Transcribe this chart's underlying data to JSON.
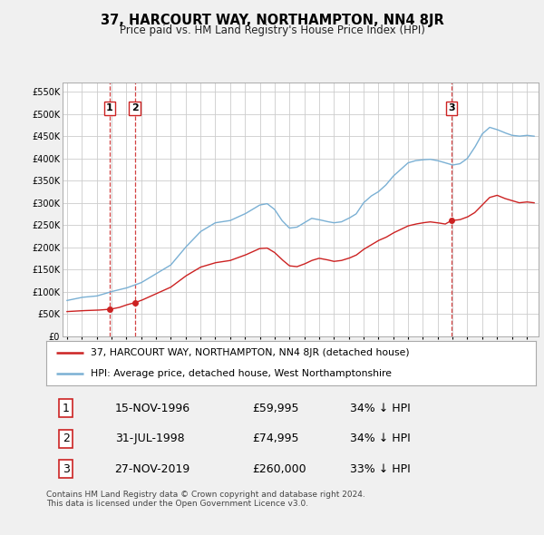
{
  "title": "37, HARCOURT WAY, NORTHAMPTON, NN4 8JR",
  "subtitle": "Price paid vs. HM Land Registry's House Price Index (HPI)",
  "ytick_values": [
    0,
    50000,
    100000,
    150000,
    200000,
    250000,
    300000,
    350000,
    400000,
    450000,
    500000,
    550000
  ],
  "ylim": [
    0,
    570000
  ],
  "xlim_start": 1993.7,
  "xlim_end": 2025.8,
  "hpi_color": "#7ab0d4",
  "price_color": "#cc2222",
  "dashed_vline_color": "#cc2222",
  "transactions": [
    {
      "date": 1996.88,
      "price": 59995,
      "label": "1"
    },
    {
      "date": 1998.58,
      "price": 74995,
      "label": "2"
    },
    {
      "date": 2019.92,
      "price": 260000,
      "label": "3"
    }
  ],
  "legend_entries": [
    {
      "label": "37, HARCOURT WAY, NORTHAMPTON, NN4 8JR (detached house)",
      "color": "#cc2222"
    },
    {
      "label": "HPI: Average price, detached house, West Northamptonshire",
      "color": "#7ab0d4"
    }
  ],
  "table_rows": [
    {
      "num": "1",
      "date": "15-NOV-1996",
      "price": "£59,995",
      "note": "34% ↓ HPI"
    },
    {
      "num": "2",
      "date": "31-JUL-1998",
      "price": "£74,995",
      "note": "34% ↓ HPI"
    },
    {
      "num": "3",
      "date": "27-NOV-2019",
      "price": "£260,000",
      "note": "33% ↓ HPI"
    }
  ],
  "footer": "Contains HM Land Registry data © Crown copyright and database right 2024.\nThis data is licensed under the Open Government Licence v3.0.",
  "background_color": "#f0f0f0",
  "plot_bg_color": "#ffffff",
  "grid_color": "#cccccc"
}
